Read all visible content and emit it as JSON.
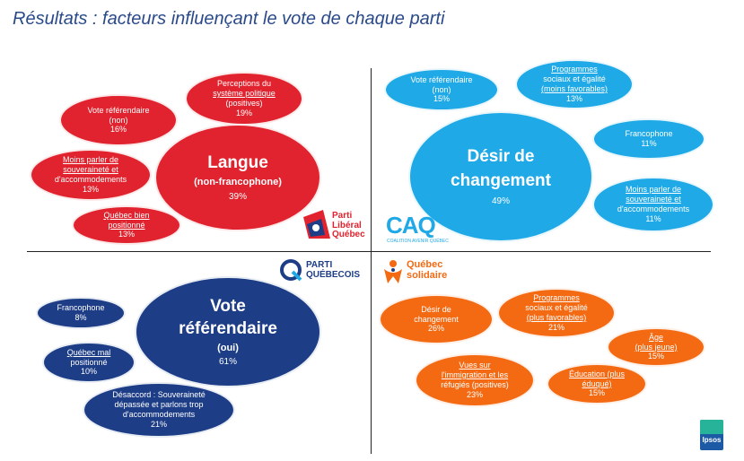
{
  "title": "Résultats : facteurs influençant le vote de chaque parti",
  "quadrants": {
    "plq": {
      "logo": {
        "l1": "Parti",
        "l2": "Libéral",
        "l3": "Québec"
      },
      "main": {
        "l1": "Langue",
        "l2": "(non-francophone)",
        "value": "39%"
      },
      "b1": {
        "l1": "Vote référendaire",
        "l2": "(non)",
        "value": "16%"
      },
      "b2": {
        "l1": "Perceptions du",
        "l2": "système politique",
        "l3": "(positives)",
        "value": "19%"
      },
      "b3": {
        "l1": "Moins parler de",
        "l2": "souveraineté et",
        "l3": "d'accommodements",
        "value": "13%"
      },
      "b4": {
        "l1": "Québec bien",
        "l2": "positionné",
        "value": "13%"
      }
    },
    "caq": {
      "logo": {
        "name": "CAQ",
        "sub": "COALITION AVENIR QUÉBEC"
      },
      "main": {
        "l1": "Désir de",
        "l2": "changement",
        "value": "49%"
      },
      "b1": {
        "l1": "Vote référendaire",
        "l2": "(non)",
        "value": "15%"
      },
      "b2": {
        "l1": "Programmes",
        "l2": "sociaux et égalité",
        "l3": "(moins favorables)",
        "value": "13%"
      },
      "b3": {
        "l1": "Francophone",
        "value": "11%"
      },
      "b4": {
        "l1": "Moins parler de",
        "l2": "souveraineté et",
        "l3": "d'accommodements",
        "value": "11%"
      }
    },
    "pq": {
      "logo": {
        "l1": "PARTI",
        "l2": "QUÉBECOIS"
      },
      "main": {
        "l1": "Vote",
        "l2": "référendaire",
        "l3": "(oui)",
        "value": "61%"
      },
      "b1": {
        "l1": "Francophone",
        "value": "8%"
      },
      "b2": {
        "l1": "Québec mal",
        "l2": "positionné",
        "value": "10%"
      },
      "b3": {
        "l1": "Désaccord : Souveraineté",
        "l2": "dépassée et parlons trop",
        "l3": "d'accommodements",
        "value": "21%"
      }
    },
    "qs": {
      "logo": {
        "l1": "Québec",
        "l2": "solidaire"
      },
      "b1": {
        "l1": "Désir de",
        "l2": "changement",
        "value": "26%"
      },
      "b2": {
        "l1": "Programmes",
        "l2": "sociaux et égalité",
        "l3": "(plus favorables)",
        "value": "21%"
      },
      "b3": {
        "l1": "Âge",
        "l2": "(plus jeune)",
        "value": "15%"
      },
      "b4": {
        "l1": "Vues sur",
        "l2": "l'immigration et les",
        "l3": "réfugiés (positives)",
        "value": "23%"
      },
      "b5": {
        "l1": "Éducation (plus",
        "l2": "éduqué)",
        "value": "15%"
      }
    }
  },
  "footer_logo": "Ipsos",
  "colors": {
    "plq": "#e0232e",
    "caq": "#1fa9e6",
    "pq": "#1d3d86",
    "qs": "#f36a13",
    "title": "#2a4a8a"
  }
}
